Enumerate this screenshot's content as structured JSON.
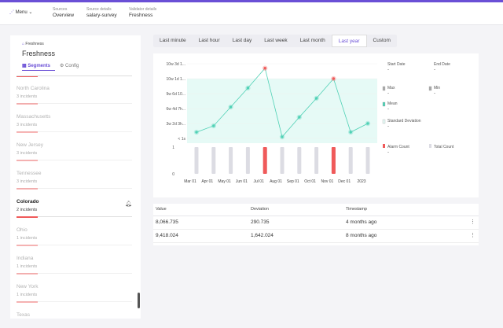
{
  "header": {
    "menu": "Menu",
    "breadcrumbs": [
      {
        "label": "Sources",
        "value": "Overview"
      },
      {
        "label": "Source details",
        "value": "salary-survey"
      },
      {
        "label": "Validator details",
        "value": "Freshness"
      }
    ]
  },
  "sidebar": {
    "kicker": "Freshness",
    "title": "Freshness",
    "tabs": [
      "Segments",
      "Config"
    ],
    "active_segment": 4,
    "segments": [
      {
        "name": "North Carolina",
        "incidents": "3 incidents"
      },
      {
        "name": "Massachusetts",
        "incidents": "3 incidents"
      },
      {
        "name": "New Jersey",
        "incidents": "3 incidents"
      },
      {
        "name": "Tennessee",
        "incidents": "3 incidents"
      },
      {
        "name": "Colorado",
        "incidents": "2 incidents"
      },
      {
        "name": "Ohio",
        "incidents": "1 incidents"
      },
      {
        "name": "Indiana",
        "incidents": "1 incidents"
      },
      {
        "name": "New York",
        "incidents": "1 incidents"
      },
      {
        "name": "Texas"
      }
    ]
  },
  "time_ranges": [
    "Last minute",
    "Last hour",
    "Last day",
    "Last week",
    "Last month",
    "Last year",
    "Custom"
  ],
  "active_range": 5,
  "stats": [
    {
      "label": "Start Date",
      "value": "-"
    },
    {
      "label": "End Date",
      "value": "-"
    },
    {
      "label": "Max",
      "value": "-"
    },
    {
      "label": "Min",
      "value": "-"
    },
    {
      "label": "Mean",
      "value": "-"
    },
    {
      "label": "Standard Deviation",
      "value": "-"
    }
  ],
  "chart_data": [
    {
      "type": "line",
      "color": "#4fd1b5",
      "values": [
        9.7,
        19.5,
        48.7,
        70.0,
        72.4,
        2.4,
        32.9,
        62.1,
        71.0,
        9.7,
        23.1
      ],
      "ylim": [
        0,
        73
      ],
      "yticks": [
        {
          "value": 0,
          "label": "< 1s"
        },
        {
          "value": 23.1,
          "label": "3w 2d 3h..."
        },
        {
          "value": 46.3,
          "label": "6w 4d 7h..."
        },
        {
          "value": 69.4,
          "label": "9w 6d 10..."
        },
        {
          "value": 71,
          "label": "10w 1d 1..."
        },
        {
          "value": 73,
          "label": "10w 3d 1..."
        }
      ]
    },
    {
      "type": "bar",
      "categories": [
        "Mar 01",
        "Apr 01",
        "May 01",
        "Jun 01",
        "Jul 01",
        "Aug 01",
        "Sep 01",
        "Oct 01",
        "Nov 01",
        "Dec 01",
        "2023"
      ],
      "ylim": [
        0,
        1
      ],
      "yticks": [
        0,
        1
      ],
      "series": [
        {
          "name": "Total Count",
          "color": "#dcdce3",
          "values": [
            1,
            1,
            1,
            1,
            1,
            1,
            1,
            1,
            1,
            1,
            1
          ]
        },
        {
          "name": "Alarm Count",
          "color": "#f05a5a",
          "values": [
            0,
            0,
            0,
            0,
            1,
            0,
            0,
            0,
            1,
            0,
            0
          ]
        }
      ]
    }
  ],
  "table": {
    "columns": [
      "Value",
      "Deviation",
      "Timestamp"
    ],
    "rows": [
      [
        "8,066.735",
        "290.735",
        "4 months ago"
      ],
      [
        "9,418.024",
        "1,642.024",
        "8 months ago"
      ]
    ]
  }
}
